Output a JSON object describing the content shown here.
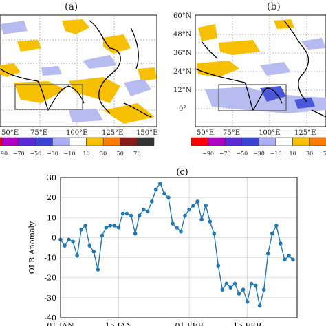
{
  "panels": {
    "a": {
      "label": "(a)",
      "lon_ticks": [
        "50°E",
        "75°E",
        "100°E",
        "125°E",
        "150°E"
      ],
      "lat_ticks": []
    },
    "b": {
      "label": "(b)",
      "lon_ticks": [
        "50°E",
        "75°E",
        "100°E",
        "125°E"
      ],
      "lat_ticks": [
        "60°N",
        "48°N",
        "36°N",
        "24°N",
        "12°N",
        "0°"
      ]
    }
  },
  "colorbar": {
    "labels": [
      "−90",
      "−70",
      "−50",
      "−30",
      "−10",
      "10",
      "30",
      "50",
      "70"
    ],
    "colors": [
      "#ff0000",
      "#b000c8",
      "#5a2bd6",
      "#3b44d6",
      "#a8aef0",
      "#ffffff",
      "#f6c000",
      "#ff7a00",
      "#8b1a1a",
      "#333333"
    ]
  },
  "chart_data": {
    "type": "line",
    "title": "(c)",
    "xlabel": "",
    "ylabel": "OLR Anomaly",
    "ylim": [
      -40,
      30
    ],
    "yticks": [
      30,
      20,
      10,
      0,
      -10,
      -20,
      -30,
      -40
    ],
    "xticks": [
      {
        "day": 1,
        "label": "01 JAN"
      },
      {
        "day": 15,
        "label": "15 JAN"
      },
      {
        "day": 32,
        "label": "01 FEB"
      },
      {
        "day": 46,
        "label": "15 FEB"
      }
    ],
    "xlim": [
      1,
      58
    ],
    "grid": true,
    "color": "#1f77b4",
    "x": [
      1,
      2,
      3,
      4,
      5,
      6,
      7,
      8,
      9,
      10,
      11,
      12,
      13,
      14,
      15,
      16,
      17,
      18,
      19,
      20,
      21,
      22,
      23,
      24,
      25,
      26,
      27,
      28,
      29,
      30,
      31,
      32,
      33,
      34,
      35,
      36,
      37,
      38,
      39,
      40,
      41,
      42,
      43,
      44,
      45,
      46,
      47,
      48,
      49,
      50,
      51,
      52,
      53,
      54,
      55,
      56,
      57
    ],
    "y": [
      -1,
      -4,
      -1,
      -2,
      -9,
      4,
      6,
      -4,
      -7,
      -16,
      1,
      5,
      6,
      6,
      5,
      12,
      12,
      11,
      2,
      11,
      14,
      13,
      18,
      24,
      27,
      22,
      20,
      7,
      5,
      3,
      11,
      14,
      16,
      18,
      9,
      16,
      8,
      2,
      -14,
      -26,
      -23,
      -25,
      -23,
      -28,
      -26,
      -32,
      -23,
      -24,
      -34,
      -26,
      -8,
      2,
      6,
      -3,
      -11,
      -9,
      -11
    ]
  }
}
